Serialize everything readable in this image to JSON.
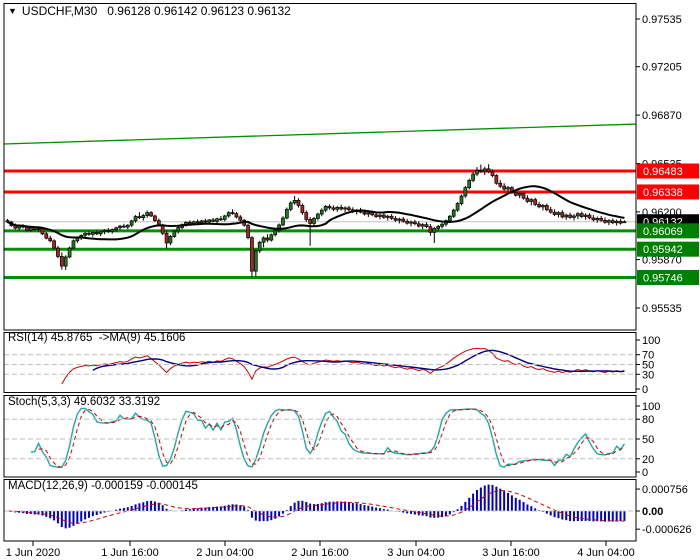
{
  "header": {
    "marker_icon": "▼",
    "symbol": "USDCHF,M30",
    "quote": "0.96128 0.96142 0.96123 0.96132"
  },
  "colors": {
    "bull_candle": "#1F7D1F",
    "bear_candle": "#B22222",
    "candle_outline": "#000000",
    "ma_line": "#000000",
    "trendline": "#009000",
    "resistance_line": "#FF0000",
    "support_line": "#009000",
    "current_price_line": "#C0C0C0",
    "tag_red_bg": "#FF0000",
    "tag_green_bg": "#008000",
    "tag_black_bg": "#000000",
    "tag_text": "#FFFFFF",
    "grid_dashed": "#C0C0C0",
    "pane_border": "#000000",
    "rsi_line": "#D00000",
    "rsi_ma_line": "#000080",
    "stoch_k_line": "#20A8A0",
    "stoch_d_line": "#D00000",
    "macd_histogram": "#0000CC",
    "macd_signal": "#D00000",
    "axis_text": "#000000"
  },
  "chart_data": {
    "type": "candlestick",
    "symbol": "USDCHF",
    "timeframe": "M30",
    "last_bar": {
      "open": "0.96128",
      "high": "0.96142",
      "low": "0.96123",
      "close": "0.96132"
    },
    "price_axis": {
      "ticks": [
        "0.97535",
        "0.97205",
        "0.96870",
        "0.96535",
        "0.96200",
        "0.95870",
        "0.95535"
      ]
    },
    "time_axis": {
      "labels": [
        "1 Jun 2020",
        "1 Jun 16:00",
        "2 Jun 04:00",
        "2 Jun 16:00",
        "3 Jun 04:00",
        "3 Jun 16:00",
        "4 Jun 04:00"
      ]
    },
    "overlays": {
      "moving_average": {
        "type": "sma",
        "period": 20
      },
      "trendline": {
        "start_price": 0.9667,
        "end_price": 0.96808
      },
      "resistance_levels": [
        {
          "price": 0.96483,
          "label": "0.96483"
        },
        {
          "price": 0.96338,
          "label": "0.96338"
        }
      ],
      "support_levels": [
        {
          "price": 0.96069,
          "label": "0.96069"
        },
        {
          "price": 0.95942,
          "label": "0.95942"
        },
        {
          "price": 0.95746,
          "label": "0.95746"
        }
      ],
      "current_price": {
        "price": 0.96132,
        "label": "0.96132"
      }
    },
    "candles": [
      [
        0.9614,
        0.96152,
        0.96122,
        0.9613
      ],
      [
        0.9613,
        0.96138,
        0.96098,
        0.96105
      ],
      [
        0.96105,
        0.9612,
        0.96078,
        0.96088
      ],
      [
        0.96088,
        0.9611,
        0.9607,
        0.96102
      ],
      [
        0.96102,
        0.96115,
        0.96085,
        0.96095
      ],
      [
        0.96095,
        0.96108,
        0.96065,
        0.96072
      ],
      [
        0.96072,
        0.96098,
        0.9606,
        0.9609
      ],
      [
        0.9609,
        0.961,
        0.9607,
        0.96078
      ],
      [
        0.96078,
        0.96095,
        0.96058,
        0.96085
      ],
      [
        0.96085,
        0.96092,
        0.9604,
        0.96048
      ],
      [
        0.96048,
        0.9606,
        0.9601,
        0.96018
      ],
      [
        0.96018,
        0.96035,
        0.9599,
        0.96
      ],
      [
        0.96,
        0.9601,
        0.9594,
        0.9595
      ],
      [
        0.9595,
        0.95965,
        0.9588,
        0.95892
      ],
      [
        0.95892,
        0.9592,
        0.958,
        0.95825
      ],
      [
        0.95825,
        0.959,
        0.95798,
        0.95888
      ],
      [
        0.95888,
        0.9596,
        0.9588,
        0.9595
      ],
      [
        0.9595,
        0.9601,
        0.9594,
        0.96
      ],
      [
        0.96,
        0.9603,
        0.95985,
        0.96022
      ],
      [
        0.96022,
        0.96045,
        0.96005,
        0.96038
      ],
      [
        0.96038,
        0.9606,
        0.9602,
        0.96052
      ],
      [
        0.96052,
        0.9607,
        0.96035,
        0.96045
      ],
      [
        0.96045,
        0.96065,
        0.96028,
        0.96058
      ],
      [
        0.96058,
        0.96075,
        0.9604,
        0.96048
      ],
      [
        0.96048,
        0.96068,
        0.96032,
        0.96062
      ],
      [
        0.96062,
        0.9608,
        0.96045,
        0.96072
      ],
      [
        0.96072,
        0.96088,
        0.96055,
        0.96065
      ],
      [
        0.96065,
        0.96085,
        0.9605,
        0.96078
      ],
      [
        0.96078,
        0.96098,
        0.96062,
        0.9609
      ],
      [
        0.9609,
        0.9611,
        0.96075,
        0.96102
      ],
      [
        0.96102,
        0.96118,
        0.96088,
        0.96095
      ],
      [
        0.96095,
        0.96115,
        0.9608,
        0.96108
      ],
      [
        0.96108,
        0.96145,
        0.96095,
        0.96138
      ],
      [
        0.96138,
        0.96178,
        0.96125,
        0.96168
      ],
      [
        0.96168,
        0.96198,
        0.9615,
        0.9616
      ],
      [
        0.9616,
        0.96185,
        0.9614,
        0.96175
      ],
      [
        0.96175,
        0.9621,
        0.9616,
        0.96195
      ],
      [
        0.96195,
        0.96205,
        0.96165,
        0.96172
      ],
      [
        0.96172,
        0.96182,
        0.9613,
        0.9614
      ],
      [
        0.9614,
        0.96155,
        0.961,
        0.96108
      ],
      [
        0.96108,
        0.96118,
        0.9604,
        0.96052
      ],
      [
        0.96052,
        0.96075,
        0.95945,
        0.95985
      ],
      [
        0.95985,
        0.9604,
        0.9597,
        0.9603
      ],
      [
        0.9603,
        0.96075,
        0.9602,
        0.96068
      ],
      [
        0.96068,
        0.961,
        0.9605,
        0.96092
      ],
      [
        0.96092,
        0.9612,
        0.9608,
        0.96112
      ],
      [
        0.96112,
        0.96135,
        0.96098,
        0.96128
      ],
      [
        0.96128,
        0.96142,
        0.96108,
        0.96118
      ],
      [
        0.96118,
        0.9614,
        0.96105,
        0.96132
      ],
      [
        0.96132,
        0.96148,
        0.96115,
        0.96125
      ],
      [
        0.96125,
        0.96145,
        0.9611,
        0.96138
      ],
      [
        0.96138,
        0.96152,
        0.9612,
        0.9613
      ],
      [
        0.9613,
        0.9615,
        0.96118,
        0.96145
      ],
      [
        0.96145,
        0.96158,
        0.96128,
        0.96135
      ],
      [
        0.96135,
        0.9616,
        0.96122,
        0.96152
      ],
      [
        0.96152,
        0.96172,
        0.96138,
        0.96148
      ],
      [
        0.96148,
        0.9618,
        0.96135,
        0.96172
      ],
      [
        0.96172,
        0.96205,
        0.9616,
        0.96195
      ],
      [
        0.96195,
        0.96218,
        0.9618,
        0.96188
      ],
      [
        0.96188,
        0.962,
        0.96155,
        0.96165
      ],
      [
        0.96165,
        0.96178,
        0.9613,
        0.96142
      ],
      [
        0.96142,
        0.96152,
        0.96098,
        0.96108
      ],
      [
        0.96108,
        0.9612,
        0.9601,
        0.96022
      ],
      [
        0.96022,
        0.96032,
        0.95748,
        0.9579
      ],
      [
        0.9579,
        0.9594,
        0.9575,
        0.9593
      ],
      [
        0.9593,
        0.96,
        0.95915,
        0.9599
      ],
      [
        0.9599,
        0.9603,
        0.95955,
        0.9602
      ],
      [
        0.9602,
        0.96045,
        0.9599,
        0.96005
      ],
      [
        0.96005,
        0.9605,
        0.95995,
        0.96042
      ],
      [
        0.96042,
        0.9608,
        0.9603,
        0.9607
      ],
      [
        0.9607,
        0.9612,
        0.96058,
        0.9611
      ],
      [
        0.9611,
        0.9617,
        0.961,
        0.96158
      ],
      [
        0.96158,
        0.9623,
        0.96148,
        0.96218
      ],
      [
        0.96218,
        0.96275,
        0.96205,
        0.96262
      ],
      [
        0.96262,
        0.9631,
        0.9625,
        0.9628
      ],
      [
        0.9628,
        0.96295,
        0.9623,
        0.96245
      ],
      [
        0.96245,
        0.96258,
        0.9618,
        0.96195
      ],
      [
        0.96195,
        0.9621,
        0.9613,
        0.96148
      ],
      [
        0.96148,
        0.96165,
        0.95965,
        0.9612
      ],
      [
        0.9612,
        0.96165,
        0.96105,
        0.96155
      ],
      [
        0.96155,
        0.96195,
        0.9614,
        0.96185
      ],
      [
        0.96185,
        0.96225,
        0.9617,
        0.96212
      ],
      [
        0.96212,
        0.96248,
        0.96198,
        0.96238
      ],
      [
        0.96238,
        0.96252,
        0.96215,
        0.96228
      ],
      [
        0.96228,
        0.96245,
        0.96205,
        0.96218
      ],
      [
        0.96218,
        0.9624,
        0.962,
        0.96232
      ],
      [
        0.96232,
        0.9625,
        0.9621,
        0.9622
      ],
      [
        0.9622,
        0.96238,
        0.96198,
        0.96228
      ],
      [
        0.96228,
        0.96242,
        0.96205,
        0.96215
      ],
      [
        0.96215,
        0.96232,
        0.96192,
        0.96202
      ],
      [
        0.96202,
        0.9622,
        0.96182,
        0.96212
      ],
      [
        0.96212,
        0.96228,
        0.9619,
        0.96198
      ],
      [
        0.96198,
        0.96215,
        0.96175,
        0.96185
      ],
      [
        0.96185,
        0.96205,
        0.96165,
        0.96195
      ],
      [
        0.96195,
        0.9621,
        0.9617,
        0.9618
      ],
      [
        0.9618,
        0.96198,
        0.96158,
        0.96168
      ],
      [
        0.96168,
        0.96188,
        0.96148,
        0.96178
      ],
      [
        0.96178,
        0.96192,
        0.96152,
        0.96162
      ],
      [
        0.96162,
        0.9618,
        0.9614,
        0.9617
      ],
      [
        0.9617,
        0.96185,
        0.96145,
        0.96155
      ],
      [
        0.96155,
        0.96172,
        0.96132,
        0.96142
      ],
      [
        0.96142,
        0.9616,
        0.9612,
        0.9615
      ],
      [
        0.9615,
        0.96165,
        0.96125,
        0.96135
      ],
      [
        0.96135,
        0.96152,
        0.96112,
        0.96122
      ],
      [
        0.96122,
        0.9614,
        0.961,
        0.9613
      ],
      [
        0.9613,
        0.96145,
        0.96108,
        0.96118
      ],
      [
        0.96118,
        0.96135,
        0.96092,
        0.96102
      ],
      [
        0.96102,
        0.96122,
        0.9608,
        0.96112
      ],
      [
        0.96112,
        0.96128,
        0.96088,
        0.96098
      ],
      [
        0.96098,
        0.96115,
        0.96035,
        0.96058
      ],
      [
        0.96058,
        0.96095,
        0.95985,
        0.96085
      ],
      [
        0.96085,
        0.9611,
        0.96068,
        0.961
      ],
      [
        0.961,
        0.96125,
        0.96085,
        0.96115
      ],
      [
        0.96115,
        0.96148,
        0.961,
        0.9614
      ],
      [
        0.9614,
        0.9618,
        0.96128,
        0.9617
      ],
      [
        0.9617,
        0.96222,
        0.96158,
        0.96212
      ],
      [
        0.96212,
        0.96268,
        0.962,
        0.96258
      ],
      [
        0.96258,
        0.9632,
        0.96245,
        0.9631
      ],
      [
        0.9631,
        0.9638,
        0.96298,
        0.96368
      ],
      [
        0.96368,
        0.9643,
        0.96355,
        0.96418
      ],
      [
        0.96418,
        0.96475,
        0.96405,
        0.96462
      ],
      [
        0.96462,
        0.9651,
        0.96448,
        0.96488
      ],
      [
        0.96488,
        0.96528,
        0.9647,
        0.96482
      ],
      [
        0.96482,
        0.96512,
        0.96455,
        0.96498
      ],
      [
        0.96498,
        0.9653,
        0.96468,
        0.96478
      ],
      [
        0.96478,
        0.96495,
        0.9644,
        0.96452
      ],
      [
        0.96452,
        0.96462,
        0.96388,
        0.96398
      ],
      [
        0.96398,
        0.9642,
        0.96365,
        0.96378
      ],
      [
        0.96378,
        0.96398,
        0.96345,
        0.96358
      ],
      [
        0.96358,
        0.9638,
        0.96335,
        0.96368
      ],
      [
        0.96368,
        0.96378,
        0.96325,
        0.96335
      ],
      [
        0.96335,
        0.96355,
        0.96305,
        0.96315
      ],
      [
        0.96315,
        0.96338,
        0.96295,
        0.96328
      ],
      [
        0.96328,
        0.9634,
        0.96285,
        0.96295
      ],
      [
        0.96295,
        0.96315,
        0.96262,
        0.96272
      ],
      [
        0.96272,
        0.96295,
        0.96245,
        0.96285
      ],
      [
        0.96285,
        0.96298,
        0.9624,
        0.96252
      ],
      [
        0.96252,
        0.9627,
        0.96225,
        0.96235
      ],
      [
        0.96235,
        0.96255,
        0.9621,
        0.96245
      ],
      [
        0.96245,
        0.96258,
        0.96205,
        0.96215
      ],
      [
        0.96215,
        0.96235,
        0.96188,
        0.96198
      ],
      [
        0.96198,
        0.96218,
        0.96172,
        0.96182
      ],
      [
        0.96182,
        0.96205,
        0.96162,
        0.96195
      ],
      [
        0.96195,
        0.96212,
        0.96155,
        0.96165
      ],
      [
        0.96165,
        0.96188,
        0.96145,
        0.96178
      ],
      [
        0.96178,
        0.96195,
        0.96152,
        0.96162
      ],
      [
        0.96162,
        0.96185,
        0.9614,
        0.96172
      ],
      [
        0.96172,
        0.96198,
        0.9615,
        0.96188
      ],
      [
        0.96188,
        0.96202,
        0.96158,
        0.96168
      ],
      [
        0.96168,
        0.9619,
        0.96145,
        0.96178
      ],
      [
        0.96178,
        0.96192,
        0.96148,
        0.96158
      ],
      [
        0.96158,
        0.96178,
        0.96135,
        0.96145
      ],
      [
        0.96145,
        0.96168,
        0.96125,
        0.96155
      ],
      [
        0.96155,
        0.96172,
        0.96132,
        0.96142
      ],
      [
        0.96142,
        0.96162,
        0.96118,
        0.96128
      ],
      [
        0.96128,
        0.9615,
        0.96108,
        0.9614
      ],
      [
        0.9614,
        0.96155,
        0.96115,
        0.96125
      ],
      [
        0.96125,
        0.96148,
        0.96105,
        0.96135
      ],
      [
        0.96135,
        0.9615,
        0.96112,
        0.96122
      ],
      [
        0.96128,
        0.96142,
        0.96123,
        0.96132
      ]
    ],
    "subcharts": [
      {
        "id": "rsi",
        "type": "line",
        "label": "RSI(14) 45.8765  ->MA(9) 45.1606",
        "params": {
          "period": 14,
          "ma_period": 9
        },
        "last_values": [
          "45.8765",
          "45.1606"
        ],
        "axis_ticks": [
          100,
          70,
          50,
          30,
          0
        ],
        "dashed_levels": [
          70,
          50,
          30
        ],
        "range": [
          0,
          100
        ]
      },
      {
        "id": "stochastic",
        "type": "line",
        "label": "Stoch(5,3,3) 49.6032 33.3192",
        "params": {
          "k": 5,
          "d": 3,
          "slowing": 3
        },
        "last_values": [
          "49.6032",
          "33.3192"
        ],
        "axis_ticks": [
          100,
          80,
          50,
          20,
          0
        ],
        "dashed_levels": [
          80,
          50,
          20
        ],
        "range": [
          0,
          100
        ]
      },
      {
        "id": "macd",
        "type": "histogram",
        "label": "MACD(12,26,9) -0.000159 -0.000145",
        "params": {
          "fast": 12,
          "slow": 26,
          "signal": 9
        },
        "last_values": [
          "-0.000159",
          "-0.000145"
        ],
        "axis_ticks": [
          {
            "text": "0.000756",
            "value": 0.000756,
            "bold": false
          },
          {
            "text": "0.00",
            "value": 0,
            "bold": true
          },
          {
            "text": "-0.000626",
            "value": -0.000626,
            "bold": false
          }
        ],
        "dashed_levels": [
          0
        ]
      }
    ]
  }
}
